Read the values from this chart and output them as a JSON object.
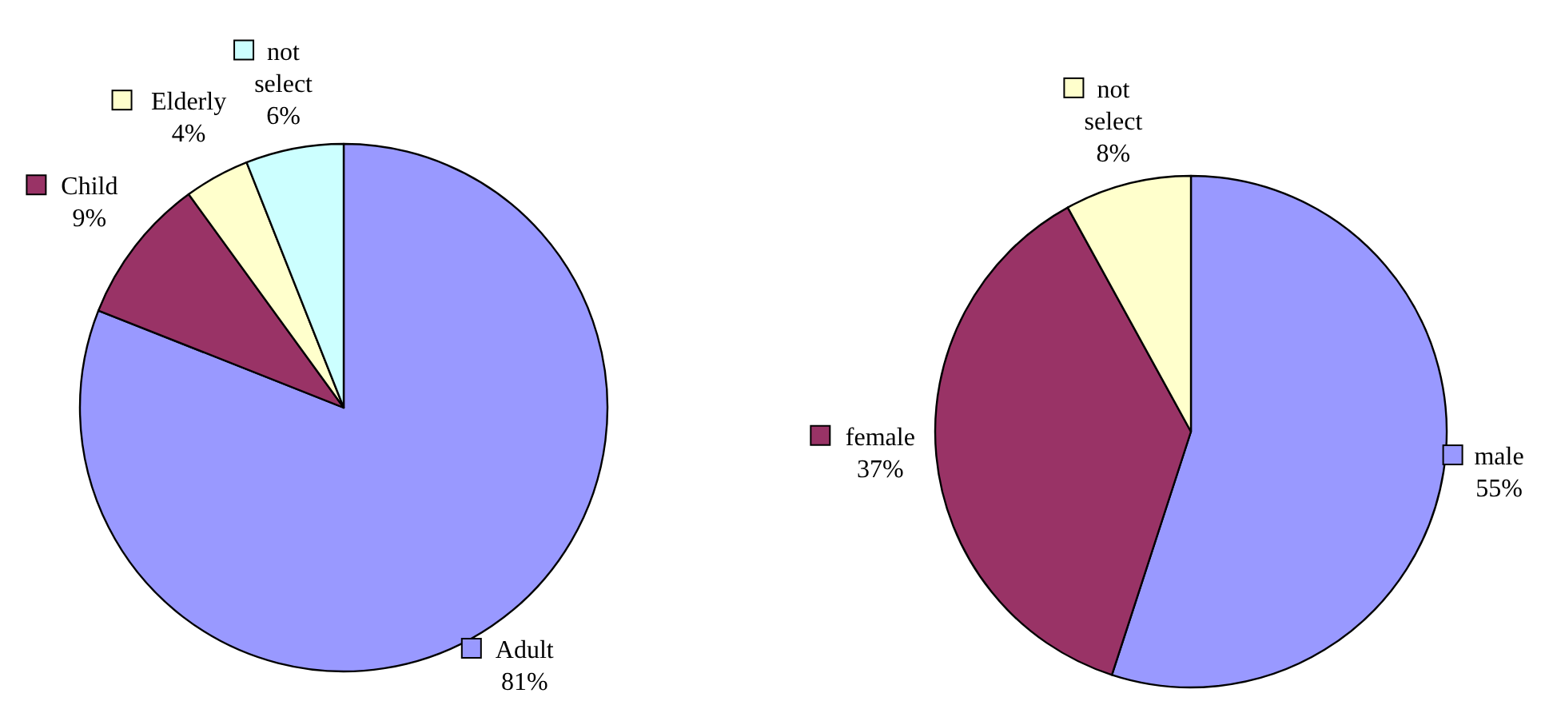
{
  "chart_data": [
    {
      "type": "pie",
      "categories": [
        "Adult",
        "Child",
        "Elderly",
        "not select"
      ],
      "values": [
        81,
        9,
        4,
        6
      ],
      "colors": [
        "#9999ff",
        "#993366",
        "#ffffcc",
        "#ccffff"
      ],
      "value_labels": [
        "81%",
        "9%",
        "4%",
        "6%"
      ],
      "legend": "top left"
    },
    {
      "type": "pie",
      "categories": [
        "male",
        "female",
        "not select"
      ],
      "values": [
        55,
        37,
        8
      ],
      "colors": [
        "#9999ff",
        "#993366",
        "#ffffcc"
      ],
      "value_labels": [
        "55%",
        "37%",
        "8%"
      ],
      "legend": "right"
    }
  ]
}
